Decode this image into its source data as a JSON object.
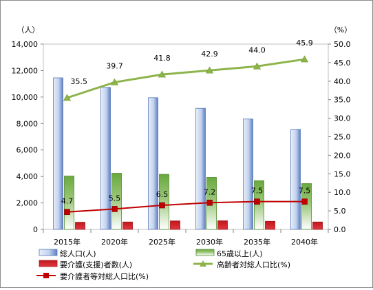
{
  "chart_data": {
    "type": "bar",
    "categories": [
      "2015年",
      "2020年",
      "2025年",
      "2030年",
      "2035年",
      "2040年"
    ],
    "left_axis": {
      "unit": "（人）",
      "range": [
        0,
        14000
      ],
      "ticks": [
        "0",
        "2,000",
        "4,000",
        "6,000",
        "8,000",
        "10,000",
        "12,000",
        "14,000"
      ]
    },
    "right_axis": {
      "unit": "（%）",
      "range": [
        0,
        50
      ],
      "ticks": [
        "0.0",
        "5.0",
        "10.0",
        "15.0",
        "20.0",
        "25.0",
        "30.0",
        "35.0",
        "40.0",
        "45.0",
        "50.0"
      ]
    },
    "grid": false,
    "legend_position": "bottom",
    "series": [
      {
        "name": "総人口(人)",
        "kind": "bar",
        "axis": "left",
        "color": "#4a6fb5",
        "values": [
          11450,
          10730,
          9950,
          9150,
          8340,
          7560
        ]
      },
      {
        "name": "65歳以上(人)",
        "kind": "bar",
        "axis": "left",
        "color": "#5f9a3c",
        "values": [
          4030,
          4240,
          4160,
          3930,
          3680,
          3460
        ]
      },
      {
        "name": "要介護(支援)者数(人)",
        "kind": "bar",
        "axis": "left",
        "color": "#c0161c",
        "values": [
          540,
          560,
          640,
          650,
          610,
          560
        ]
      },
      {
        "name": "高齢者対総人口比(%)",
        "kind": "line",
        "axis": "right",
        "color": "#8db44a",
        "values": [
          35.5,
          39.7,
          41.8,
          42.9,
          44.0,
          45.9
        ],
        "labels": [
          "35.5",
          "39.7",
          "41.8",
          "42.9",
          "44.0",
          "45.9"
        ]
      },
      {
        "name": "要介護者等対総人口比(%)",
        "kind": "line",
        "axis": "right",
        "color": "#c00000",
        "values": [
          4.7,
          5.5,
          6.5,
          7.2,
          7.5,
          7.5
        ],
        "labels": [
          "4.7",
          "5.5",
          "6.5",
          "7.2",
          "7.5",
          "7.5"
        ]
      }
    ]
  }
}
